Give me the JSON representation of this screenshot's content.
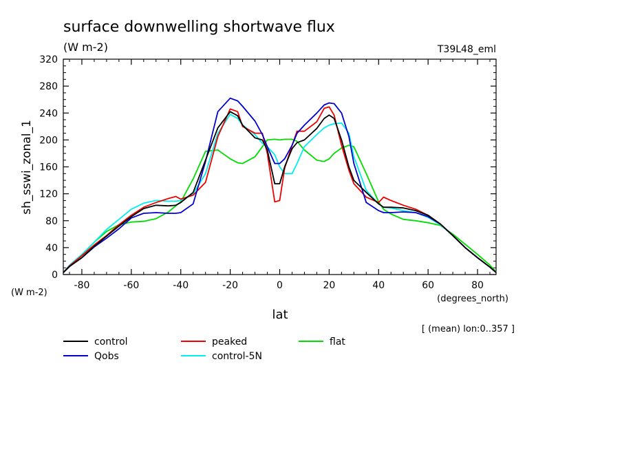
{
  "chart_data": {
    "type": "line",
    "title": "surface downwelling shortwave flux",
    "title_units": "(W m-2)",
    "experiment_tag": "T39L48_eml",
    "ylabel": "sh_sswi_zonal_1",
    "y_units": "(W m-2)",
    "xlabel": "lat",
    "x_units": "(degrees_north)",
    "averaging_note": "[ (mean) lon:0..357 ]",
    "xlim": [
      -87.5,
      87.5
    ],
    "ylim": [
      0,
      320
    ],
    "x_ticks": [
      -80,
      -60,
      -40,
      -20,
      0,
      20,
      40,
      60,
      80
    ],
    "y_ticks": [
      0,
      40,
      80,
      120,
      160,
      200,
      240,
      280,
      320
    ],
    "legend_position": "bottom",
    "x": [
      -87.5,
      -85,
      -80,
      -75,
      -70,
      -65,
      -60,
      -55,
      -50,
      -45,
      -42,
      -40,
      -35,
      -30,
      -25,
      -20,
      -17,
      -15,
      -10,
      -7,
      -5,
      -2,
      0,
      2,
      5,
      7,
      10,
      15,
      18,
      20,
      22,
      25,
      28,
      30,
      35,
      40,
      42,
      45,
      50,
      55,
      60,
      65,
      70,
      75,
      80,
      85,
      87.5
    ],
    "series": [
      {
        "name": "control",
        "color": "#000000",
        "values": [
          3,
          12,
          25,
          42,
          57,
          72,
          86,
          98,
          103,
          102,
          103,
          107,
          122,
          170,
          218,
          242,
          236,
          222,
          203,
          200,
          185,
          135,
          135,
          160,
          187,
          196,
          200,
          217,
          232,
          237,
          232,
          200,
          160,
          140,
          122,
          105,
          100,
          100,
          99,
          95,
          88,
          75,
          58,
          40,
          25,
          11,
          3
        ]
      },
      {
        "name": "peaked",
        "color": "#ee0000",
        "values": [
          3,
          13,
          28,
          44,
          58,
          74,
          88,
          100,
          107,
          113,
          116,
          112,
          118,
          137,
          205,
          246,
          242,
          220,
          210,
          210,
          180,
          108,
          110,
          158,
          192,
          213,
          213,
          227,
          247,
          249,
          237,
          192,
          155,
          135,
          115,
          107,
          115,
          110,
          103,
          97,
          88,
          75,
          58,
          40,
          25,
          11,
          3
        ]
      },
      {
        "name": "flat",
        "color": "#00dd00",
        "values": [
          3,
          13,
          29,
          48,
          64,
          74,
          78,
          79,
          83,
          93,
          102,
          108,
          142,
          183,
          185,
          172,
          166,
          165,
          175,
          190,
          200,
          201,
          200,
          201,
          201,
          198,
          185,
          170,
          168,
          172,
          180,
          188,
          192,
          190,
          150,
          108,
          97,
          90,
          82,
          80,
          77,
          73,
          60,
          45,
          30,
          14,
          4
        ]
      },
      {
        "name": "Qobs",
        "color": "#0000cc",
        "values": [
          3,
          12,
          25,
          41,
          54,
          68,
          84,
          91,
          92,
          91,
          91,
          92,
          105,
          168,
          242,
          262,
          258,
          250,
          228,
          208,
          190,
          165,
          165,
          172,
          192,
          210,
          222,
          240,
          252,
          255,
          254,
          240,
          205,
          165,
          107,
          95,
          92,
          92,
          93,
          92,
          86,
          75,
          58,
          40,
          25,
          11,
          3
        ]
      },
      {
        "name": "control-5N",
        "color": "#00eeee",
        "values": [
          3,
          14,
          30,
          48,
          67,
          82,
          97,
          106,
          110,
          109,
          109,
          110,
          120,
          150,
          210,
          238,
          232,
          222,
          208,
          195,
          190,
          178,
          160,
          150,
          150,
          165,
          190,
          208,
          218,
          222,
          224,
          225,
          210,
          175,
          125,
          105,
          100,
          99,
          95,
          92,
          85,
          74,
          58,
          40,
          25,
          11,
          3
        ]
      }
    ]
  }
}
